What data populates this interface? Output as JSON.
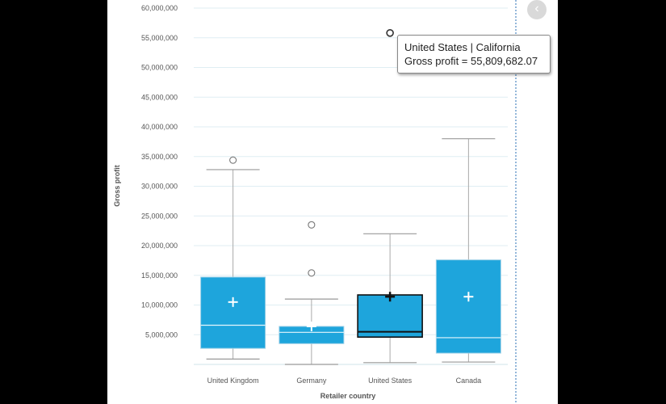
{
  "tooltip": {
    "line1": "United States | California",
    "line2": "Gross profit = 55,809,682.07"
  },
  "collapse_icon": "chevron-left-icon",
  "chart_data": {
    "type": "box",
    "title": "",
    "xlabel": "Retailer country",
    "ylabel": "Gross profit",
    "ylim": [
      0,
      60000000
    ],
    "yticks": [
      "5,000,000",
      "10,000,000",
      "15,000,000",
      "20,000,000",
      "25,000,000",
      "30,000,000",
      "35,000,000",
      "40,000,000",
      "45,000,000",
      "50,000,000",
      "55,000,000",
      "60,000,000"
    ],
    "ytick_values": [
      5000000,
      10000000,
      15000000,
      20000000,
      25000000,
      30000000,
      35000000,
      40000000,
      45000000,
      50000000,
      55000000,
      60000000
    ],
    "grid": true,
    "box_color": "#1ea5dc",
    "categories": [
      "United Kingdom",
      "Germany",
      "United States",
      "Canada"
    ],
    "boxes": [
      {
        "min": 900000,
        "q1": 2700000,
        "median": 6600000,
        "q3": 14700000,
        "max": 32800000,
        "mean": 10500000,
        "outliers": [
          34400000
        ],
        "highlighted": false
      },
      {
        "min": 0,
        "q1": 3500000,
        "median": 5400000,
        "q3": 6400000,
        "max": 11000000,
        "mean": 6400000,
        "outliers": [
          15400000,
          23500000
        ],
        "highlighted": false
      },
      {
        "min": 300000,
        "q1": 4600000,
        "median": 5500000,
        "q3": 11700000,
        "max": 22000000,
        "mean": 11400000,
        "outliers": [
          55809682.07
        ],
        "highlighted": true
      },
      {
        "min": 400000,
        "q1": 1900000,
        "median": 4500000,
        "q3": 17600000,
        "max": 38000000,
        "mean": 11400000,
        "outliers": [],
        "highlighted": false
      }
    ]
  }
}
